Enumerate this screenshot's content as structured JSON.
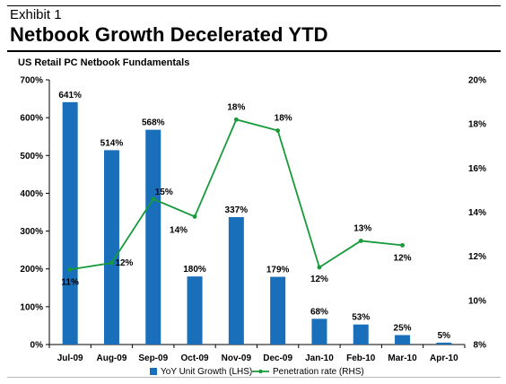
{
  "header": {
    "exhibit": "Exhibit 1",
    "title": "Netbook Growth Decelerated YTD",
    "subtitle": "US Retail PC Netbook Fundamentals"
  },
  "colors": {
    "bar": "#1a6fba",
    "line": "#169a3a"
  },
  "chart_data": {
    "type": "bar+line",
    "title": "US Retail PC Netbook Fundamentals",
    "categories": [
      "Jul-09",
      "Aug-09",
      "Sep-09",
      "Oct-09",
      "Nov-09",
      "Dec-09",
      "Jan-10",
      "Feb-10",
      "Mar-10",
      "Apr-10"
    ],
    "series": [
      {
        "name": "YoY Unit Growth (LHS)",
        "type": "bar",
        "axis": "left",
        "values": [
          641,
          514,
          568,
          180,
          337,
          179,
          68,
          53,
          25,
          5
        ],
        "labels": [
          "641%",
          "514%",
          "568%",
          "180%",
          "337%",
          "179%",
          "68%",
          "53%",
          "25%",
          "5%"
        ]
      },
      {
        "name": "Penetration rate (RHS)",
        "type": "line",
        "axis": "right",
        "values": [
          11.4,
          11.7,
          14.6,
          13.8,
          18.2,
          17.7,
          11.5,
          12.7,
          12.5,
          null
        ],
        "labels": [
          "11%",
          "12%",
          "15%",
          "14%",
          "18%",
          "18%",
          "12%",
          "13%",
          "12%",
          ""
        ]
      }
    ],
    "y_left": {
      "ylim": [
        0,
        700
      ],
      "ticks": [
        "0%",
        "100%",
        "200%",
        "300%",
        "400%",
        "500%",
        "600%",
        "700%"
      ]
    },
    "y_right": {
      "ylim": [
        8,
        20
      ],
      "ticks": [
        "8%",
        "10%",
        "12%",
        "14%",
        "16%",
        "18%",
        "20%"
      ]
    },
    "grid": false,
    "legend_position": "bottom"
  }
}
